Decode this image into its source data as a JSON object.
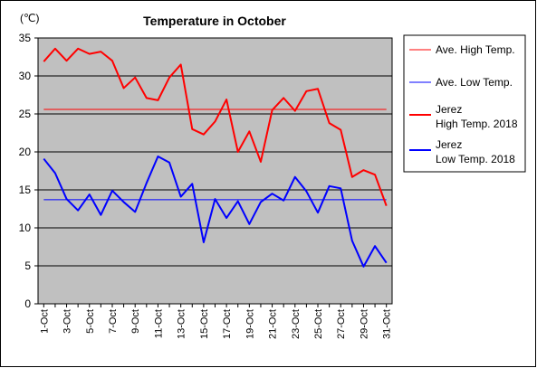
{
  "chart_data": {
    "type": "line",
    "title": "Temperature in October",
    "unit_label": "(℃)",
    "xlabel": "",
    "ylabel": "",
    "ylim": [
      0,
      35
    ],
    "y_ticks": [
      "0",
      "5",
      "10",
      "15",
      "20",
      "25",
      "30",
      "35"
    ],
    "grid": true,
    "legend_position": "right",
    "colors": {
      "plot_background": "#c0c0c0",
      "high": "#ff0000",
      "low": "#0000ff"
    },
    "x_tick_labels": [
      "1-Oct",
      "3-Oct",
      "5-Oct",
      "7-Oct",
      "9-Oct",
      "11-Oct",
      "13-Oct",
      "15-Oct",
      "17-Oct",
      "19-Oct",
      "21-Oct",
      "23-Oct",
      "25-Oct",
      "27-Oct",
      "29-Oct",
      "31-Oct"
    ],
    "x": [
      1,
      2,
      3,
      4,
      5,
      6,
      7,
      8,
      9,
      10,
      11,
      12,
      13,
      14,
      15,
      16,
      17,
      18,
      19,
      20,
      21,
      22,
      23,
      24,
      25,
      26,
      27,
      28,
      29,
      30,
      31
    ],
    "series": [
      {
        "name": "Ave. High Temp.",
        "color": "#ff0000",
        "line_width": 1,
        "values": [
          25.6,
          25.6,
          25.6,
          25.6,
          25.6,
          25.6,
          25.6,
          25.6,
          25.6,
          25.6,
          25.6,
          25.6,
          25.6,
          25.6,
          25.6,
          25.6,
          25.6,
          25.6,
          25.6,
          25.6,
          25.6,
          25.6,
          25.6,
          25.6,
          25.6,
          25.6,
          25.6,
          25.6,
          25.6,
          25.6,
          25.6
        ]
      },
      {
        "name": "Ave. Low Temp.",
        "color": "#0000ff",
        "line_width": 1,
        "values": [
          13.7,
          13.7,
          13.7,
          13.7,
          13.7,
          13.7,
          13.7,
          13.7,
          13.7,
          13.7,
          13.7,
          13.7,
          13.7,
          13.7,
          13.7,
          13.7,
          13.7,
          13.7,
          13.7,
          13.7,
          13.7,
          13.7,
          13.7,
          13.7,
          13.7,
          13.7,
          13.7,
          13.7,
          13.7,
          13.7,
          13.7
        ]
      },
      {
        "name": "Jerez High Temp. 2018",
        "legend_lines": [
          "Jerez",
          "High Temp. 2018"
        ],
        "color": "#ff0000",
        "line_width": 2,
        "values": [
          31.9,
          33.6,
          32.0,
          33.6,
          32.9,
          33.2,
          32.0,
          28.4,
          29.8,
          27.1,
          26.8,
          29.8,
          31.5,
          23.0,
          22.3,
          24.0,
          26.9,
          20.0,
          22.7,
          18.7,
          25.5,
          27.1,
          25.4,
          28.0,
          28.3,
          23.8,
          22.9,
          16.7,
          17.6,
          17.0,
          12.9
        ]
      },
      {
        "name": "Jerez Low Temp. 2018",
        "legend_lines": [
          "Jerez",
          "Low Temp. 2018"
        ],
        "color": "#0000ff",
        "line_width": 2,
        "values": [
          19.1,
          17.2,
          13.8,
          12.3,
          14.4,
          11.7,
          14.9,
          13.4,
          12.1,
          15.9,
          19.4,
          18.6,
          14.1,
          15.8,
          8.1,
          13.8,
          11.3,
          13.5,
          10.5,
          13.4,
          14.5,
          13.6,
          16.7,
          14.8,
          12.0,
          15.5,
          15.2,
          8.3,
          4.9,
          7.6,
          5.4
        ]
      }
    ]
  }
}
